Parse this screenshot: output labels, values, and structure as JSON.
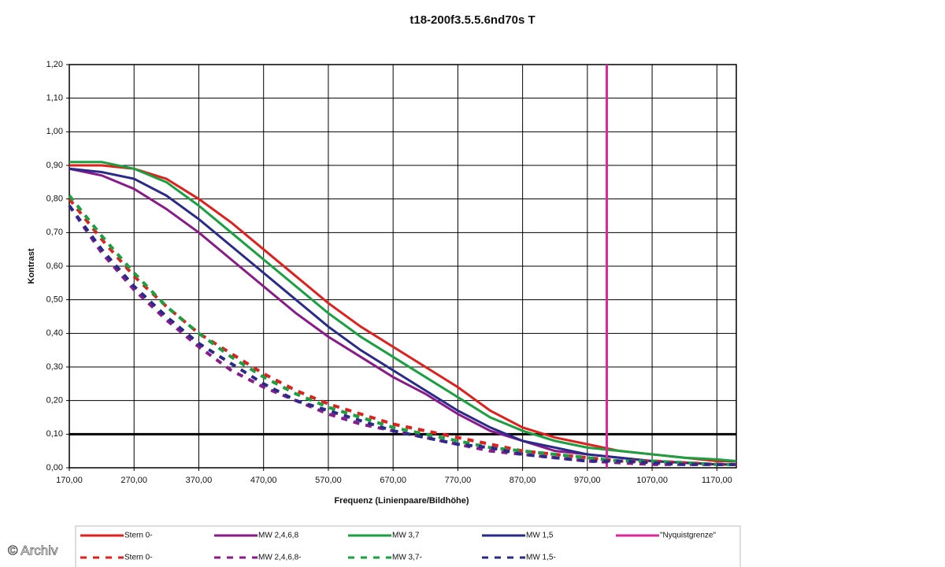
{
  "chart_data": {
    "type": "line",
    "title": "t18-200f3.5.5.6nd70s T",
    "xlabel": "Frequenz (Linienpaare/Bildhöhe)",
    "ylabel": "Kontrast",
    "watermark": "© Archiv",
    "grid": true,
    "legend": "bottom",
    "xlim": [
      170,
      1200
    ],
    "ylim": [
      0,
      1.2
    ],
    "xticks": [
      {
        "value": 170,
        "label": "170,00"
      },
      {
        "value": 270,
        "label": "270,00"
      },
      {
        "value": 370,
        "label": "370,00"
      },
      {
        "value": 470,
        "label": "470,00"
      },
      {
        "value": 570,
        "label": "570,00"
      },
      {
        "value": 670,
        "label": "670,00"
      },
      {
        "value": 770,
        "label": "770,00"
      },
      {
        "value": 870,
        "label": "870,00"
      },
      {
        "value": 970,
        "label": "970,00"
      },
      {
        "value": 1070,
        "label": "1070,00"
      },
      {
        "value": 1170,
        "label": "1170,00"
      }
    ],
    "yticks": [
      {
        "value": 0,
        "label": "0,00"
      },
      {
        "value": 0.1,
        "label": "0,10"
      },
      {
        "value": 0.2,
        "label": "0,20"
      },
      {
        "value": 0.3,
        "label": "0,30"
      },
      {
        "value": 0.4,
        "label": "0,40"
      },
      {
        "value": 0.5,
        "label": "0,50"
      },
      {
        "value": 0.6,
        "label": "0,60"
      },
      {
        "value": 0.7,
        "label": "0,70"
      },
      {
        "value": 0.8,
        "label": "0,80"
      },
      {
        "value": 0.9,
        "label": "0,90"
      },
      {
        "value": 1.0,
        "label": "1,00"
      },
      {
        "value": 1.1,
        "label": "1,10"
      },
      {
        "value": 1.2,
        "label": "1,20"
      }
    ],
    "threshold": 0.1,
    "x": [
      170,
      220,
      270,
      320,
      370,
      420,
      470,
      520,
      570,
      620,
      670,
      720,
      770,
      820,
      870,
      920,
      970,
      1020,
      1070,
      1120,
      1170,
      1200
    ],
    "series": [
      {
        "name": "Stern 0-",
        "color": "#e0201c",
        "dash": false,
        "values": [
          0.9,
          0.9,
          0.89,
          0.86,
          0.8,
          0.73,
          0.65,
          0.57,
          0.49,
          0.42,
          0.36,
          0.3,
          0.24,
          0.17,
          0.12,
          0.09,
          0.07,
          0.05,
          0.04,
          0.03,
          0.02,
          0.02
        ]
      },
      {
        "name": "MW 2,4,6,8",
        "color": "#8a1a8a",
        "dash": false,
        "values": [
          0.89,
          0.87,
          0.83,
          0.77,
          0.7,
          0.62,
          0.54,
          0.46,
          0.39,
          0.33,
          0.27,
          0.22,
          0.16,
          0.11,
          0.08,
          0.05,
          0.04,
          0.03,
          0.02,
          0.015,
          0.01,
          0.01
        ]
      },
      {
        "name": "MW 3,7",
        "color": "#1aa040",
        "dash": false,
        "values": [
          0.91,
          0.91,
          0.89,
          0.85,
          0.78,
          0.7,
          0.62,
          0.54,
          0.46,
          0.39,
          0.33,
          0.27,
          0.21,
          0.15,
          0.11,
          0.08,
          0.06,
          0.05,
          0.04,
          0.03,
          0.025,
          0.02
        ]
      },
      {
        "name": "MW 1,5",
        "color": "#2a2a8a",
        "dash": false,
        "values": [
          0.89,
          0.88,
          0.86,
          0.81,
          0.74,
          0.66,
          0.58,
          0.5,
          0.42,
          0.35,
          0.29,
          0.23,
          0.17,
          0.12,
          0.08,
          0.06,
          0.04,
          0.03,
          0.02,
          0.015,
          0.01,
          0.01
        ]
      },
      {
        "name": "\"Nyquistgrenze\"",
        "color": "#e0259a",
        "dash": false,
        "x": [
          1000,
          1000
        ],
        "values": [
          0,
          1.2
        ]
      },
      {
        "name": "Stern 0-",
        "color": "#e0201c",
        "dash": true,
        "values": [
          0.8,
          0.68,
          0.57,
          0.48,
          0.4,
          0.34,
          0.28,
          0.23,
          0.19,
          0.16,
          0.13,
          0.11,
          0.09,
          0.07,
          0.05,
          0.04,
          0.03,
          0.02,
          0.02,
          0.015,
          0.01,
          0.01
        ]
      },
      {
        "name": "MW 2,4,6,8-",
        "color": "#8a1a8a",
        "dash": true,
        "values": [
          0.78,
          0.64,
          0.53,
          0.44,
          0.36,
          0.29,
          0.24,
          0.2,
          0.16,
          0.13,
          0.11,
          0.09,
          0.07,
          0.05,
          0.04,
          0.03,
          0.02,
          0.015,
          0.01,
          0.01,
          0.01,
          0.01
        ]
      },
      {
        "name": "MW 3,7-",
        "color": "#1aa040",
        "dash": true,
        "values": [
          0.81,
          0.69,
          0.58,
          0.48,
          0.4,
          0.33,
          0.27,
          0.22,
          0.18,
          0.15,
          0.12,
          0.1,
          0.08,
          0.06,
          0.05,
          0.04,
          0.03,
          0.02,
          0.02,
          0.015,
          0.01,
          0.01
        ]
      },
      {
        "name": "MW 1,5-",
        "color": "#2a2a8a",
        "dash": true,
        "values": [
          0.78,
          0.65,
          0.54,
          0.45,
          0.37,
          0.31,
          0.25,
          0.2,
          0.17,
          0.14,
          0.11,
          0.09,
          0.07,
          0.06,
          0.04,
          0.03,
          0.02,
          0.02,
          0.015,
          0.01,
          0.01,
          0.01
        ]
      }
    ]
  }
}
